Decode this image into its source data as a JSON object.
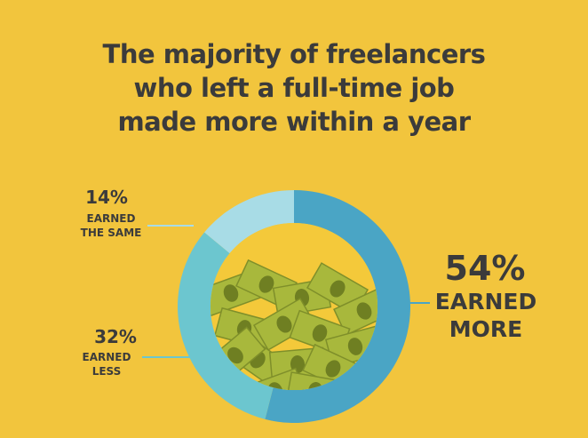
{
  "chart_data": {
    "type": "donut",
    "title": [
      "The majority of freelancers",
      "who left a full-time job",
      "made more within a year"
    ],
    "categories": [
      "EARNED MORE",
      "EARNED LESS",
      "EARNED THE SAME"
    ],
    "values": [
      54,
      32,
      14
    ],
    "value_labels": [
      "54%",
      "32%",
      "14%"
    ],
    "colors": [
      "#4aa5c5",
      "#6cc6cf",
      "#a8dce6"
    ]
  }
}
